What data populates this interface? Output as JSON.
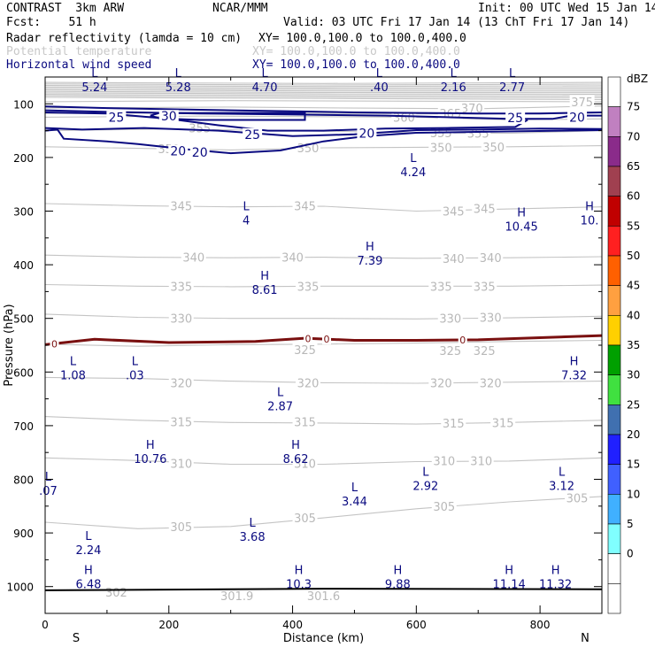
{
  "header": {
    "model": "CONTRAST  3km ARW",
    "org": "NCAR/MMM",
    "init": "Init: 00 UTC Wed 15 Jan 14",
    "fcst": "Fcst:    51 h",
    "valid": "Valid: 03 UTC Fri 17 Jan 14 (13 ChT Fri 17 Jan 14)",
    "field1": "Radar reflectivity (lamda = 10 cm)",
    "field1_xy": "XY= 100.0,100.0 to 100.0,400.0",
    "field2": "Potential temperature",
    "field2_xy": "XY= 100.0,100.0 to 100.0,400.0",
    "field3": "Horizontal wind speed",
    "field3_xy": "XY= 100.0,100.0 to 100.0,400.0"
  },
  "chart_data": {
    "type": "cross-section",
    "xlabel": "Distance (km)",
    "ylabel": "Pressure (hPa)",
    "x_range": [
      0,
      900
    ],
    "y_range": [
      1050,
      50
    ],
    "x_ticks": [
      0,
      200,
      400,
      600,
      800
    ],
    "x_tick_labels": [
      "0",
      "200",
      "400",
      "600",
      "800"
    ],
    "y_ticks": [
      100,
      200,
      300,
      400,
      500,
      600,
      700,
      800,
      900,
      1000
    ],
    "y_tick_labels": [
      "100",
      "200",
      "300",
      "400",
      "500",
      "600",
      "700",
      "800",
      "900",
      "1000"
    ],
    "left_end_label": "S",
    "right_end_label": "N",
    "theta_contours": [
      {
        "label": "375",
        "at": [
          [
            868,
            96
          ]
        ]
      },
      {
        "label": "370",
        "at": [
          [
            690,
            108
          ]
        ]
      },
      {
        "label": "365",
        "at": [
          [
            655,
            118
          ]
        ]
      },
      {
        "label": "360",
        "at": [
          [
            580,
            125
          ]
        ]
      },
      {
        "label": "355",
        "at": [
          [
            250,
            145
          ],
          [
            640,
            154
          ],
          [
            700,
            155
          ]
        ]
      },
      {
        "label": "350",
        "at": [
          [
            200,
            184
          ],
          [
            425,
            182
          ],
          [
            640,
            181
          ],
          [
            725,
            180
          ]
        ]
      },
      {
        "label": "345",
        "at": [
          [
            220,
            290
          ],
          [
            420,
            290
          ],
          [
            660,
            300
          ],
          [
            710,
            295
          ]
        ]
      },
      {
        "label": "340",
        "at": [
          [
            240,
            386
          ],
          [
            400,
            386
          ],
          [
            660,
            388
          ],
          [
            720,
            387
          ]
        ]
      },
      {
        "label": "335",
        "at": [
          [
            220,
            440
          ],
          [
            425,
            440
          ],
          [
            640,
            440
          ],
          [
            710,
            440
          ]
        ]
      },
      {
        "label": "330",
        "at": [
          [
            220,
            500
          ],
          [
            655,
            500
          ],
          [
            720,
            498
          ]
        ]
      },
      {
        "label": "325",
        "at": [
          [
            420,
            558
          ],
          [
            655,
            560
          ],
          [
            710,
            560
          ]
        ]
      },
      {
        "label": "320",
        "at": [
          [
            220,
            620
          ],
          [
            425,
            620
          ],
          [
            640,
            620
          ],
          [
            720,
            620
          ]
        ]
      },
      {
        "label": "315",
        "at": [
          [
            220,
            693
          ],
          [
            420,
            693
          ],
          [
            660,
            695
          ],
          [
            740,
            694
          ]
        ]
      },
      {
        "label": "310",
        "at": [
          [
            220,
            770
          ],
          [
            420,
            770
          ],
          [
            645,
            765
          ],
          [
            705,
            765
          ]
        ]
      },
      {
        "label": "305",
        "at": [
          [
            220,
            888
          ],
          [
            420,
            872
          ],
          [
            645,
            850
          ],
          [
            860,
            835
          ]
        ]
      },
      {
        "label": "302",
        "at": [
          [
            115,
            1010
          ]
        ]
      },
      {
        "label": "301.9",
        "at": [
          [
            310,
            1017
          ]
        ]
      },
      {
        "label": "301.6",
        "at": [
          [
            450,
            1017
          ]
        ]
      }
    ],
    "wind_contours": [
      {
        "label": "25",
        "at": [
          [
            115,
            125
          ],
          [
            335,
            157
          ],
          [
            760,
            126
          ]
        ]
      },
      {
        "label": "30",
        "at": [
          [
            200,
            123
          ]
        ]
      },
      {
        "label": "20",
        "at": [
          [
            215,
            188
          ],
          [
            250,
            190
          ],
          [
            520,
            155
          ],
          [
            860,
            125
          ]
        ]
      }
    ],
    "wind_extrema": [
      {
        "type": "L",
        "value": "5.24",
        "x": 80,
        "y": 75
      },
      {
        "type": "L",
        "value": "5.28",
        "x": 215,
        "y": 75
      },
      {
        "type": "L",
        "value": "4.70",
        "x": 355,
        "y": 75
      },
      {
        "type": "L",
        "value": ".40",
        "x": 540,
        "y": 75
      },
      {
        "type": "L",
        "value": "2.16",
        "x": 660,
        "y": 75
      },
      {
        "type": "L",
        "value": "2.77",
        "x": 755,
        "y": 75
      },
      {
        "type": "L",
        "value": "4.24",
        "x": 595,
        "y": 233
      },
      {
        "type": "L",
        "value": "4",
        "x": 325,
        "y": 323
      },
      {
        "type": "H",
        "value": "10.45",
        "x": 770,
        "y": 335
      },
      {
        "type": "H",
        "value": "10.",
        "x": 880,
        "y": 323
      },
      {
        "type": "H",
        "value": "7.39",
        "x": 525,
        "y": 398
      },
      {
        "type": "H",
        "value": "8.61",
        "x": 355,
        "y": 453
      },
      {
        "type": "L",
        "value": "1.08",
        "x": 45,
        "y": 612
      },
      {
        "type": "L",
        "value": ".03",
        "x": 145,
        "y": 612
      },
      {
        "type": "H",
        "value": "7.32",
        "x": 855,
        "y": 612
      },
      {
        "type": "L",
        "value": "2.87",
        "x": 380,
        "y": 670
      },
      {
        "type": "H",
        "value": "10.76",
        "x": 170,
        "y": 768
      },
      {
        "type": "H",
        "value": "8.62",
        "x": 405,
        "y": 768
      },
      {
        "type": "L",
        "value": "2.92",
        "x": 615,
        "y": 818
      },
      {
        "type": "L",
        "value": "3.12",
        "x": 835,
        "y": 818
      },
      {
        "type": "L",
        "value": "3.44",
        "x": 500,
        "y": 847
      },
      {
        "type": "L",
        "value": ".07",
        "x": 5,
        "y": 827
      },
      {
        "type": "L",
        "value": "3.68",
        "x": 335,
        "y": 913
      },
      {
        "type": "L",
        "value": "2.24",
        "x": 70,
        "y": 938
      },
      {
        "type": "H",
        "value": "6.48",
        "x": 70,
        "y": 1001
      },
      {
        "type": "H",
        "value": "10.3",
        "x": 410,
        "y": 1001
      },
      {
        "type": "H",
        "value": "9.88",
        "x": 570,
        "y": 1001
      },
      {
        "type": "H",
        "value": "11.14",
        "x": 750,
        "y": 1001
      },
      {
        "type": "H",
        "value": "11.32",
        "x": 825,
        "y": 1001
      }
    ],
    "freezing_line": {
      "label": "0",
      "points": [
        [
          0,
          549
        ],
        [
          80,
          539
        ],
        [
          200,
          545
        ],
        [
          340,
          543
        ],
        [
          420,
          537
        ],
        [
          500,
          541
        ],
        [
          600,
          541
        ],
        [
          700,
          540
        ],
        [
          800,
          536
        ],
        [
          900,
          532
        ]
      ],
      "label_x": [
        15,
        425,
        455,
        675
      ]
    },
    "surface_line": {
      "points": [
        [
          0,
          1007
        ],
        [
          450,
          1004
        ],
        [
          900,
          1005
        ]
      ]
    },
    "colorbar": {
      "title": "dBZ",
      "labels": [
        "75",
        "70",
        "65",
        "60",
        "55",
        "50",
        "45",
        "40",
        "35",
        "30",
        "25",
        "20",
        "15",
        "10",
        "5",
        "0"
      ],
      "colors": [
        "#ffffff",
        "#c080c0",
        "#8a2b8a",
        "#a04050",
        "#c00000",
        "#ff2020",
        "#ff6000",
        "#ffa040",
        "#ffd000",
        "#00a000",
        "#40e040",
        "#4070b0",
        "#2020ff",
        "#4060ff",
        "#40b0ff",
        "#80ffff",
        "#ffffff",
        "#ffffff"
      ]
    }
  }
}
